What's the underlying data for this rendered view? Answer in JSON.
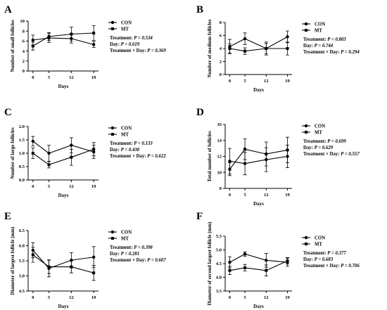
{
  "chart_data": [
    {
      "type": "line",
      "panel_label": "A",
      "xlabel": "Days",
      "ylabel": "Number of small follicles",
      "x": [
        0,
        5,
        12,
        19
      ],
      "xticks": [
        "0",
        "5",
        "12",
        "19"
      ],
      "ylim": [
        0,
        10
      ],
      "yticks": [
        0,
        2,
        4,
        6,
        8,
        10
      ],
      "series": [
        {
          "name": "CON",
          "marker": "circle",
          "values": [
            6.2,
            6.6,
            6.5,
            5.3
          ],
          "errors": [
            1.0,
            0.9,
            0.9,
            0.6
          ]
        },
        {
          "name": "MT",
          "marker": "square",
          "values": [
            5.0,
            6.9,
            7.4,
            7.6
          ],
          "errors": [
            0.8,
            0.8,
            1.4,
            1.5
          ]
        }
      ],
      "stats": {
        "treatment_label": "Treatment: ",
        "treatment_p": "P = 0.534",
        "day_label": "Day: ",
        "day_p": "P = 0.619",
        "interaction_label": "Treatment × Day: ",
        "interaction_p": "P = 0.369"
      }
    },
    {
      "type": "line",
      "panel_label": "B",
      "xlabel": "Days",
      "ylabel": "Number of medium follicles",
      "x": [
        0,
        5,
        12,
        19
      ],
      "xticks": [
        "0",
        "5",
        "12",
        "19"
      ],
      "ylim": [
        0,
        8
      ],
      "yticks": [
        0,
        2,
        4,
        6,
        8
      ],
      "series": [
        {
          "name": "CON",
          "marker": "circle",
          "values": [
            4.3,
            5.5,
            4.0,
            5.8
          ],
          "errors": [
            1.1,
            0.9,
            1.0,
            0.9
          ]
        },
        {
          "name": "MT",
          "marker": "square",
          "values": [
            4.0,
            3.6,
            4.0,
            4.0
          ],
          "errors": [
            0.7,
            0.5,
            0.8,
            1.0
          ]
        }
      ],
      "stats": {
        "treatment_label": "Treatment: ",
        "treatment_p": "P = 0.803",
        "day_label": "Day: ",
        "day_p": "P = 0.744",
        "interaction_label": "Treatment × Day: ",
        "interaction_p": "P = 0.294"
      }
    },
    {
      "type": "line",
      "panel_label": "C",
      "xlabel": "Days",
      "ylabel": "Number of large follicles",
      "x": [
        0,
        5,
        12,
        19
      ],
      "xticks": [
        "0",
        "5",
        "12",
        "19"
      ],
      "ylim": [
        0.0,
        2.0
      ],
      "yticks": [
        "0.0",
        "0.5",
        "1.0",
        "1.5",
        "2.0"
      ],
      "series": [
        {
          "name": "CON",
          "marker": "circle",
          "values": [
            1.45,
            1.0,
            1.3,
            1.05
          ],
          "errors": [
            0.18,
            0.3,
            0.28,
            0.25
          ]
        },
        {
          "name": "MT",
          "marker": "square",
          "values": [
            1.0,
            0.57,
            0.85,
            1.15
          ],
          "errors": [
            0.2,
            0.12,
            0.3,
            0.25
          ]
        }
      ],
      "stats": {
        "treatment_label": "Treatment: ",
        "treatment_p": "P = 0.133",
        "day_label": "Day: ",
        "day_p": "P = 0.430",
        "interaction_label": "Treatment × Day: ",
        "interaction_p": "P = 0.622"
      }
    },
    {
      "type": "line",
      "panel_label": "D",
      "xlabel": "Days",
      "ylabel": "Total number of follicles",
      "x": [
        0,
        5,
        12,
        19
      ],
      "xticks": [
        "0",
        "5",
        "12",
        "19"
      ],
      "ylim": [
        8,
        16
      ],
      "yticks": [
        8,
        10,
        12,
        14,
        16
      ],
      "series": [
        {
          "name": "CON",
          "marker": "circle",
          "values": [
            11.4,
            11.1,
            11.6,
            12.0
          ],
          "errors": [
            1.6,
            1.4,
            1.5,
            1.4
          ]
        },
        {
          "name": "MT",
          "marker": "square",
          "values": [
            10.4,
            12.9,
            12.3,
            12.8
          ],
          "errors": [
            0.8,
            1.3,
            1.5,
            1.6
          ]
        }
      ],
      "stats": {
        "treatment_label": "Treatment: ",
        "treatment_p": "P = 0.699",
        "day_label": "Day: ",
        "day_p": "P = 0.629",
        "interaction_label": "Treatment × Day: ",
        "interaction_p": "P = 0.557"
      }
    },
    {
      "type": "line",
      "panel_label": "E",
      "xlabel": "Days",
      "ylabel": "Diameter of largest follicle (mm)",
      "x": [
        0,
        5,
        12,
        19
      ],
      "xticks": [
        "0",
        "5",
        "12",
        "19"
      ],
      "ylim": [
        4.5,
        6.5
      ],
      "yticks": [
        "4.5",
        "5.0",
        "5.5",
        "6.0",
        "6.5"
      ],
      "series": [
        {
          "name": "CON",
          "marker": "circle",
          "values": [
            5.85,
            5.25,
            5.52,
            5.62
          ],
          "errors": [
            0.25,
            0.28,
            0.25,
            0.35
          ]
        },
        {
          "name": "MT",
          "marker": "square",
          "values": [
            5.7,
            5.3,
            5.3,
            5.1
          ],
          "errors": [
            0.25,
            0.22,
            0.2,
            0.25
          ]
        }
      ],
      "stats": {
        "treatment_label": "Treatment: ",
        "treatment_p": "P = 0.398",
        "day_label": "Day: ",
        "day_p": "P = 0.281",
        "interaction_label": "Treatment × Day: ",
        "interaction_p": "P = 0.607"
      }
    },
    {
      "type": "line",
      "panel_label": "F",
      "xlabel": "Days",
      "ylabel": "Diameter of second largest follicle (mm)",
      "x": [
        0,
        5,
        12,
        19
      ],
      "xticks": [
        "0",
        "5",
        "12",
        "19"
      ],
      "ylim": [
        3.5,
        5.5
      ],
      "yticks": [
        "3.5",
        "4.0",
        "4.5",
        "5.0",
        "5.5"
      ],
      "series": [
        {
          "name": "CON",
          "marker": "circle",
          "values": [
            4.55,
            4.85,
            4.62,
            4.55
          ],
          "errors": [
            0.2,
            0.08,
            0.25,
            0.15
          ]
        },
        {
          "name": "MT",
          "marker": "square",
          "values": [
            4.25,
            4.35,
            4.25,
            4.6
          ],
          "errors": [
            0.15,
            0.12,
            0.2,
            0.12
          ]
        }
      ],
      "stats": {
        "treatment_label": "Treatment: ",
        "treatment_p": "P = 0.377",
        "day_label": "Day: ",
        "day_p": "P = 0.683",
        "interaction_label": "Treatment × Day: ",
        "interaction_p": "P = 0.706"
      }
    }
  ]
}
